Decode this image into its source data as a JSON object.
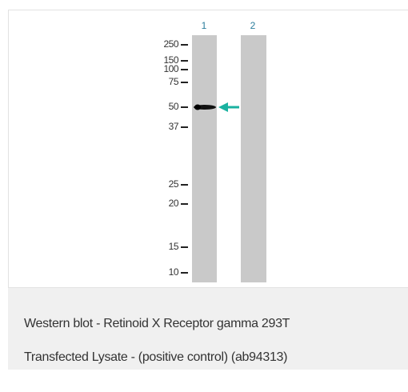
{
  "blot": {
    "lanes": [
      "1",
      "2"
    ],
    "markers": [
      "250",
      "150",
      "100",
      "75",
      "50",
      "37",
      "25",
      "20",
      "15",
      "10"
    ]
  },
  "caption": {
    "lines": [
      "Western blot - Retinoid X Receptor gamma 293T",
      "Transfected Lysate - (positive control) (ab94313)"
    ]
  }
}
